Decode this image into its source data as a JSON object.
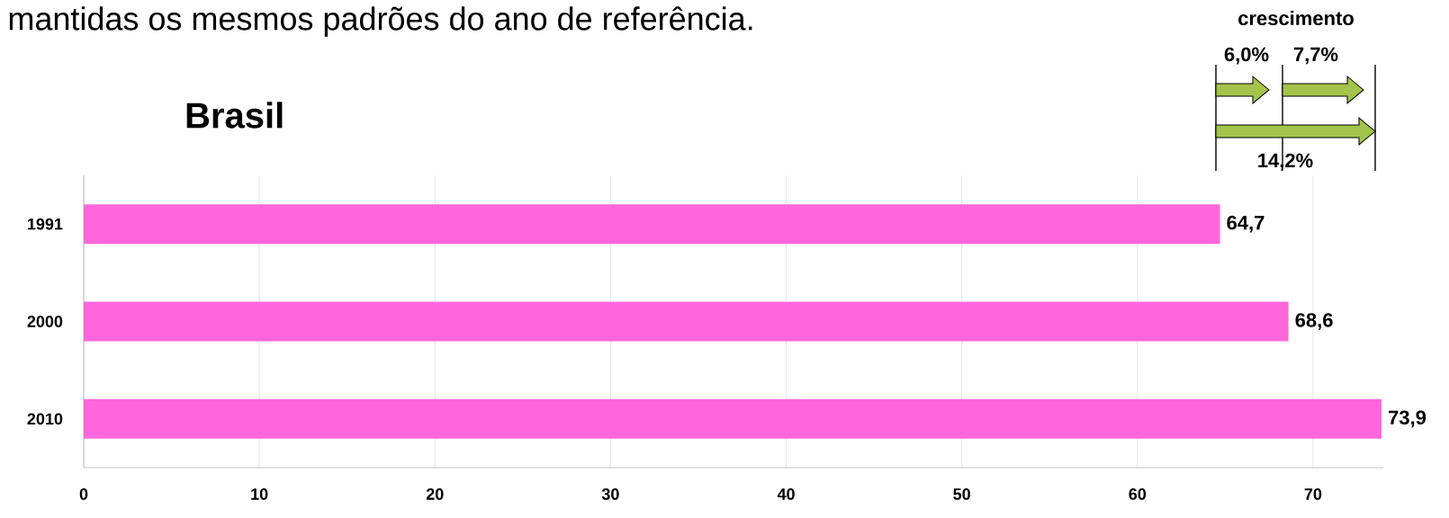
{
  "chart_data": {
    "type": "bar",
    "orientation": "horizontal",
    "title": "Brasil",
    "categories": [
      "1991",
      "2000",
      "2010"
    ],
    "values": [
      64.7,
      68.6,
      73.9
    ],
    "value_labels": [
      "64,7",
      "68,6",
      "73,9"
    ],
    "color": "#ff66dd",
    "xlim": [
      0,
      74
    ],
    "xticks": [
      0,
      10,
      20,
      30,
      40,
      50,
      60,
      70
    ],
    "grid": "x",
    "annotations": [
      "mantidas os mesmos padrões do ano de referência.",
      "crescimento",
      "6,0%",
      "7,7%",
      "14,2%"
    ]
  }
}
